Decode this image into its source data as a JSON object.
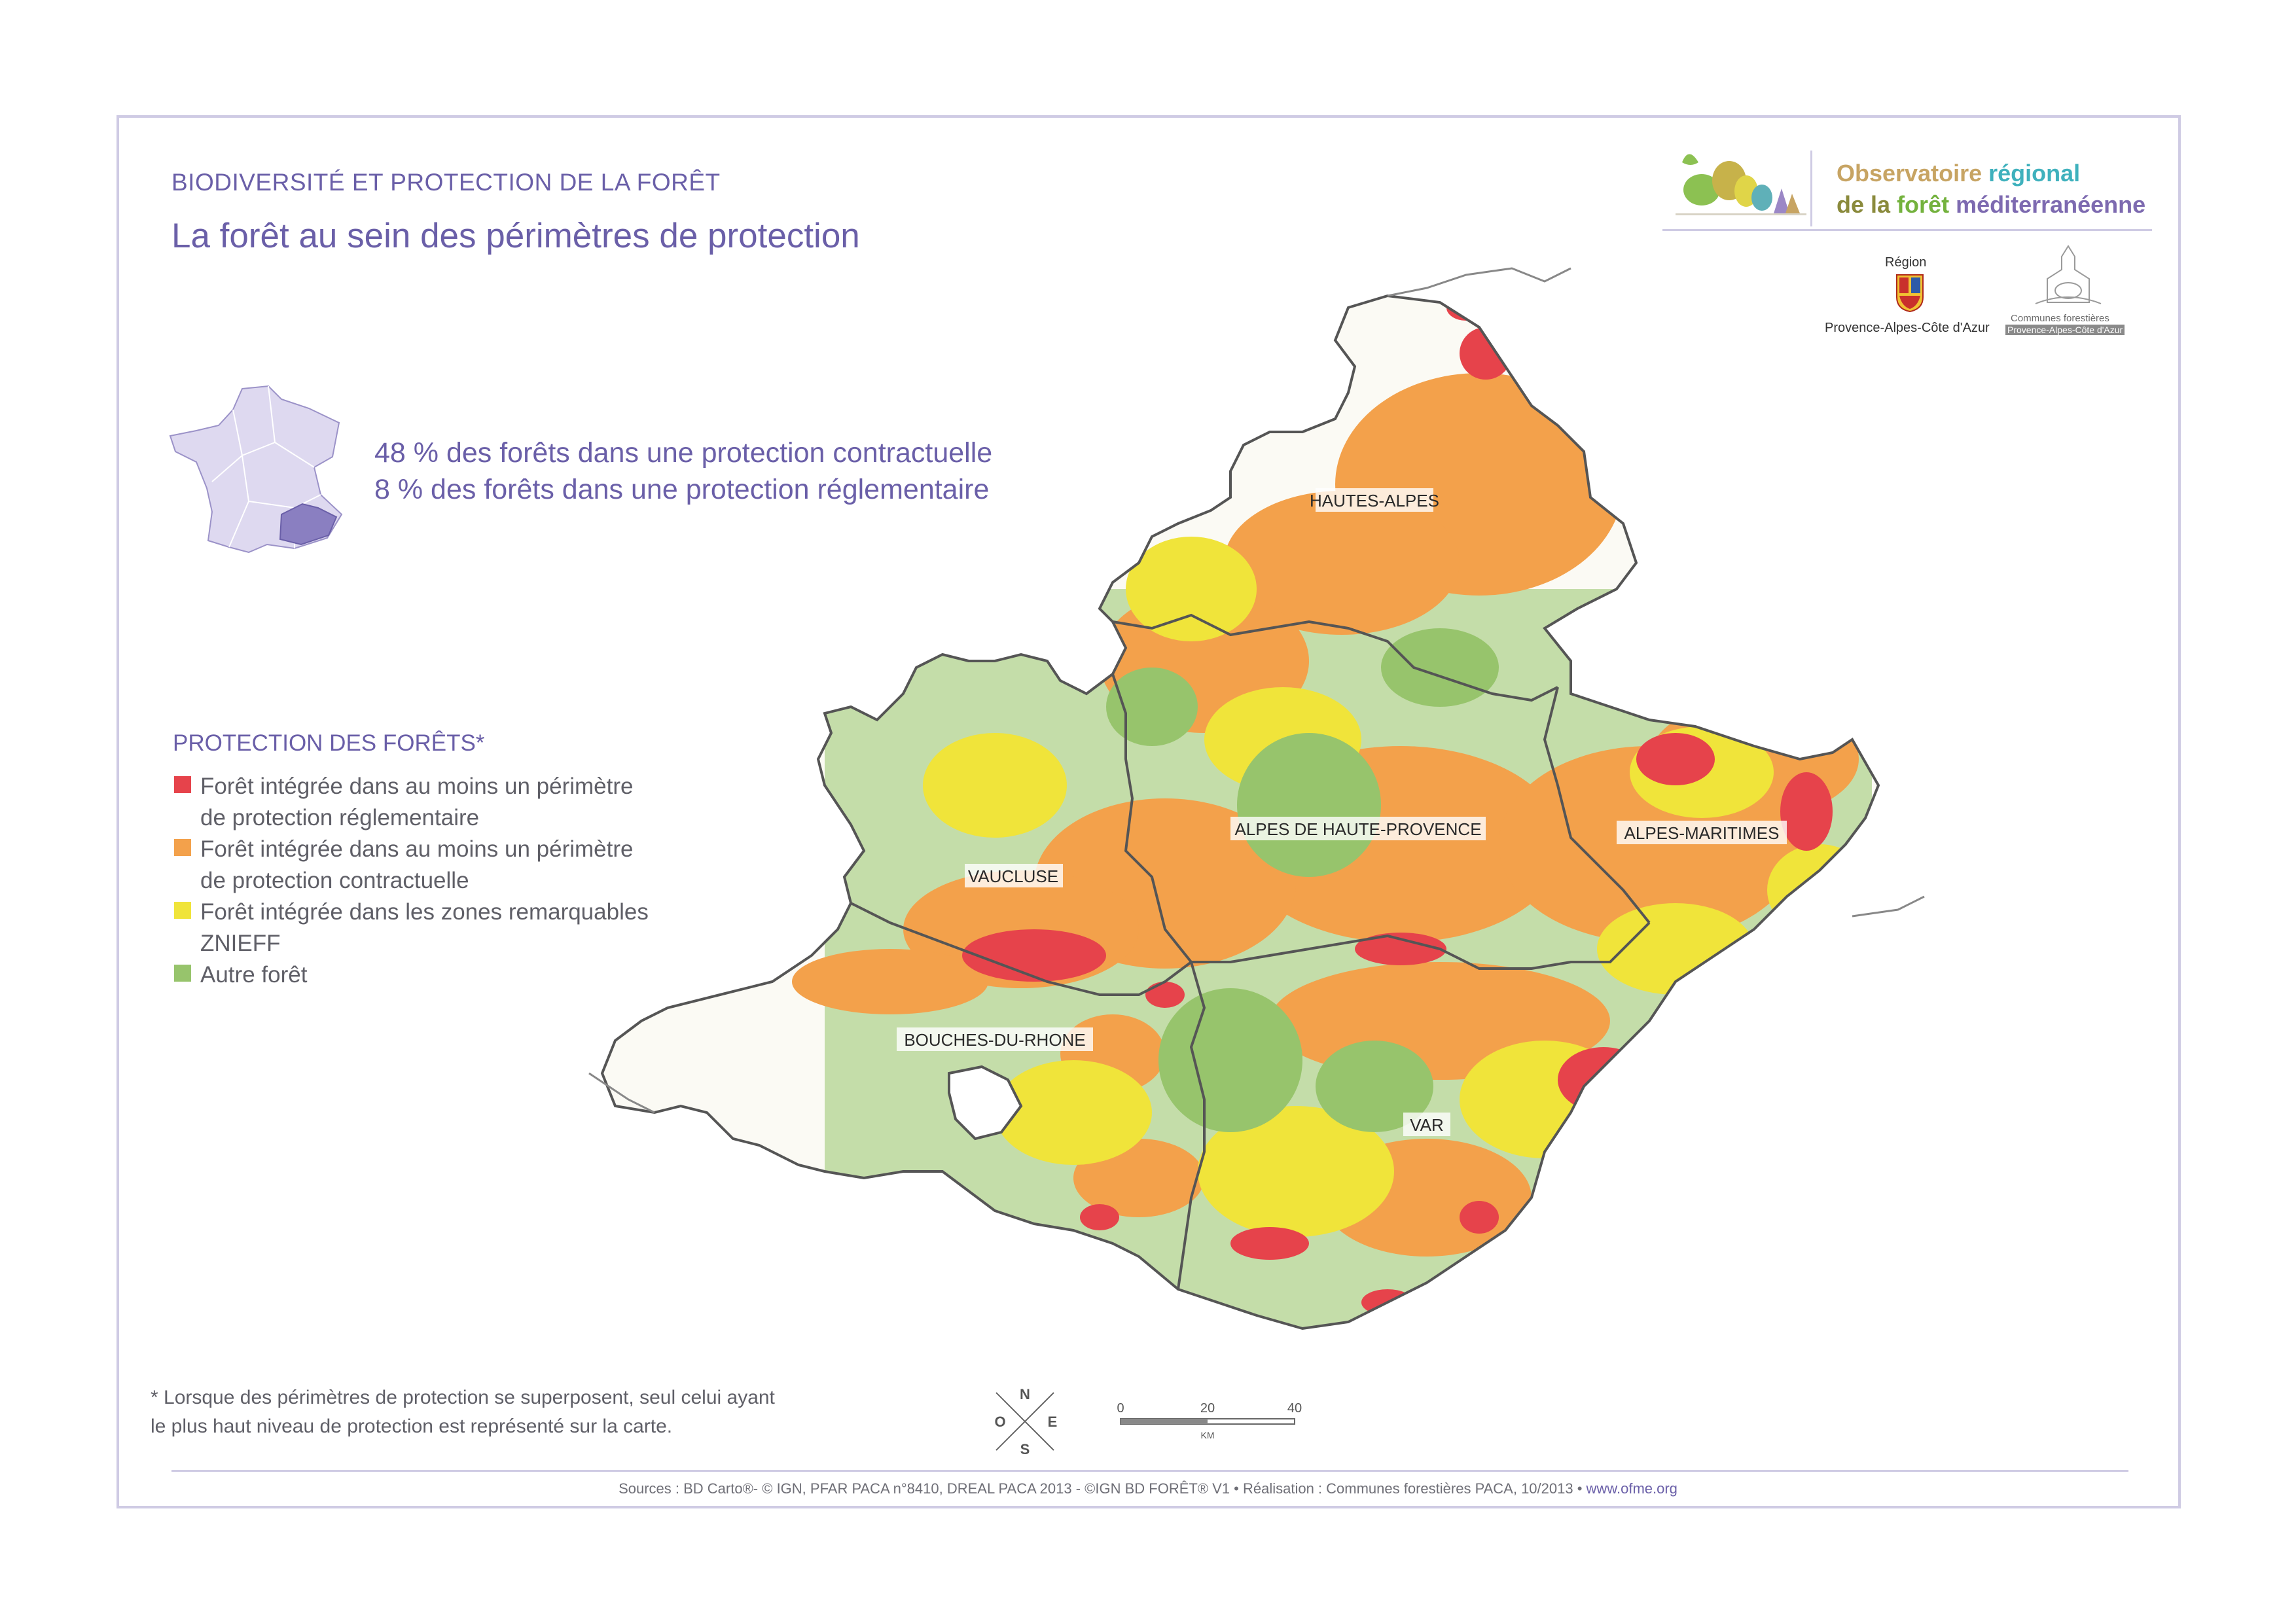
{
  "header": {
    "supertitle": "BIODIVERSITÉ ET PROTECTION DE LA FORÊT",
    "title": "La forêt au sein des périmètres de protection"
  },
  "stats": {
    "line1": "48 % des forêts dans une protection contractuelle",
    "line2": "8 % des forêts dans une protection réglementaire"
  },
  "legend": {
    "title": "PROTECTION DES FORÊTS*",
    "items": [
      {
        "lines": [
          "Forêt intégrée dans au moins un périmètre",
          "de protection réglementaire"
        ],
        "color": "#e6434b"
      },
      {
        "lines": [
          "Forêt intégrée dans au moins un périmètre",
          "de protection contractuelle"
        ],
        "color": "#f3a14b"
      },
      {
        "lines": [
          "Forêt intégrée dans les zones remarquables",
          "ZNIEFF"
        ],
        "color": "#f0e43a"
      },
      {
        "lines": [
          "Autre forêt"
        ],
        "color": "#97c46c"
      }
    ]
  },
  "map": {
    "departments": [
      "HAUTES-ALPES",
      "ALPES DE HAUTE-PROVENCE",
      "ALPES-MARITIMES",
      "VAUCLUSE",
      "BOUCHES-DU-RHONE",
      "VAR"
    ],
    "land_color": "#fbfaf4",
    "border_color": "#555555"
  },
  "scale": {
    "ticks": [
      "0",
      "20",
      "40"
    ],
    "unit": "KM"
  },
  "compass": {
    "n": "N",
    "e": "E",
    "s": "S",
    "o": "O"
  },
  "footnote": {
    "line1": "* Lorsque des périmètres de protection se superposent, seul celui ayant",
    "line2": "le plus haut niveau de protection est représenté sur la carte."
  },
  "sources": {
    "text": "Sources : BD Carto®- © IGN, PFAR PACA n°8410,  DREAL PACA 2013 - ©IGN BD FORÊT® V1 • Réalisation : Communes forestières PACA, 10/2013 • ",
    "link": "www.ofme.org"
  },
  "logos": {
    "ofme_line1a": "Observatoire",
    "ofme_line1b": "régional",
    "ofme_line2a": "de la",
    "ofme_line2b": "forêt",
    "ofme_line2c": "méditerranéenne",
    "region_top": "Région",
    "region_bottom": "Provence-Alpes-Côte d'Azur",
    "communes_line1": "Communes forestières",
    "communes_line2": "Provence-Alpes-Côte d'Azur"
  }
}
